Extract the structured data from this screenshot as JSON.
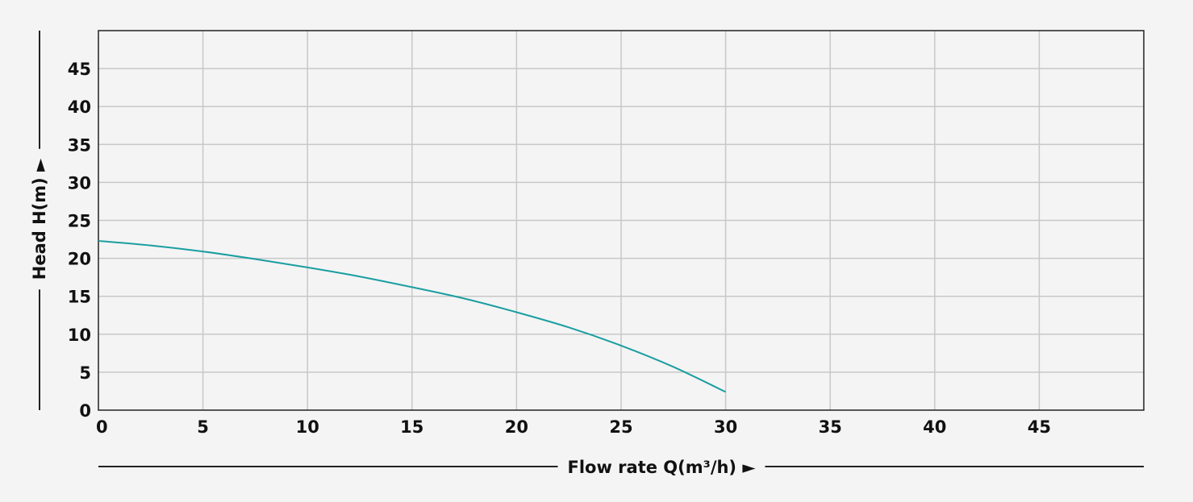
{
  "chart_data": {
    "type": "line",
    "xlabel": "Flow rate Q(m³/h) ►",
    "ylabel": "Head H(m) ►",
    "xlim": [
      0,
      50
    ],
    "ylim": [
      0,
      50
    ],
    "x_ticks": [
      0,
      5,
      10,
      15,
      20,
      25,
      30,
      35,
      40,
      45
    ],
    "y_ticks": [
      0,
      5,
      10,
      15,
      20,
      25,
      30,
      35,
      40,
      45
    ],
    "grid": true,
    "series": [
      {
        "color": "#1a9ea1",
        "points": [
          [
            0,
            22.3
          ],
          [
            2.5,
            21.7
          ],
          [
            5,
            20.9
          ],
          [
            7.5,
            19.9
          ],
          [
            10,
            18.8
          ],
          [
            12.5,
            17.6
          ],
          [
            15,
            16.2
          ],
          [
            17.5,
            14.7
          ],
          [
            20,
            12.9
          ],
          [
            22.5,
            10.9
          ],
          [
            25,
            8.5
          ],
          [
            27.5,
            5.7
          ],
          [
            30,
            2.4
          ]
        ]
      }
    ]
  },
  "colors": {
    "grid": "#c8c8c8",
    "frame": "#222222",
    "text": "#111111",
    "background": "#f4f4f4"
  }
}
